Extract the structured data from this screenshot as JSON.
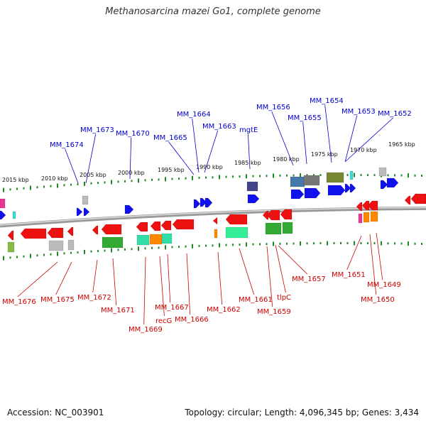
{
  "title": "Methanosarcina mazei Go1, complete genome",
  "footer": {
    "accession": "Accession: NC_003901",
    "topology": "Topology: circular; Length: 4,096,345 bp; Genes: 3,434"
  },
  "kbp_labels": [
    "2015 kbp",
    "2010 kbp",
    "2005 kbp",
    "2000 kbp",
    "1995 kbp",
    "1990 kbp",
    "1985 kbp",
    "1980 kbp",
    "1975 kbp",
    "1970 kbp",
    "1965 kbp"
  ],
  "genes_top": [
    "MM_1674",
    "MM_1673",
    "MM_1670",
    "MM_1665",
    "MM_1664",
    "MM_1663",
    "mgtE",
    "MM_1656",
    "MM_1655",
    "MM_1654",
    "MM_1653",
    "MM_1652"
  ],
  "genes_bottom": [
    "MM_1676",
    "MM_1675",
    "MM_1672",
    "MM_1671",
    "MM_1669",
    "recG",
    "MM_1667",
    "MM_1666",
    "MM_1662",
    "MM_1661",
    "MM_1659",
    "tlpC",
    "MM_1657",
    "MM_1651",
    "MM_1650",
    "MM_1649"
  ],
  "colors": {
    "forward": "#1111ee",
    "reverse": "#ee1111",
    "top_label": "#0000cc",
    "bottom_label": "#cc0000",
    "tick": "#228822"
  }
}
